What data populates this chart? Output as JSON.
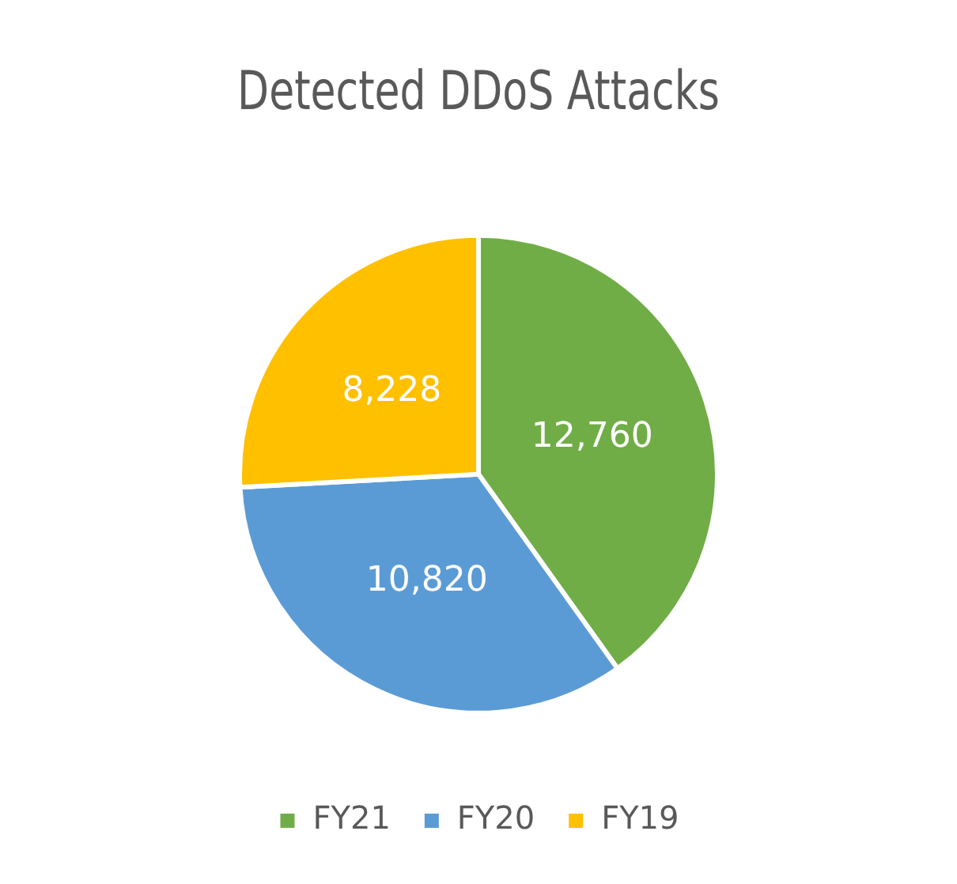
{
  "chart_data": {
    "type": "pie",
    "title": "Detected DDoS Attacks",
    "categories": [
      "FY21",
      "FY20",
      "FY19"
    ],
    "values": [
      12760,
      10820,
      8228
    ],
    "colors": [
      "#70ad47",
      "#5b9bd5",
      "#ffc000"
    ],
    "value_labels": [
      "12,760",
      "10,820",
      "8,228"
    ],
    "legend": "bottom"
  }
}
